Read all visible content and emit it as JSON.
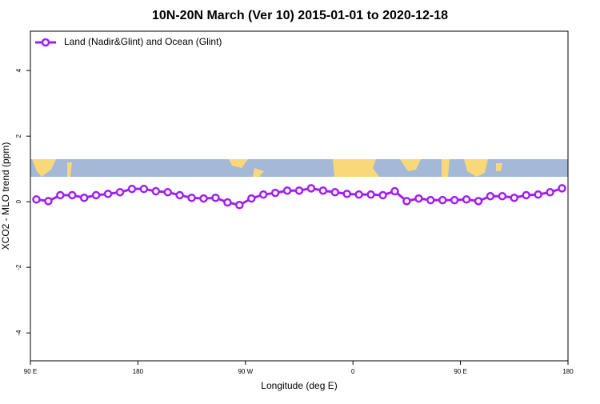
{
  "chart_data": {
    "type": "line",
    "title": "10N-20N March (Ver 10)   2015-01-01 to 2020-12-18",
    "x_label": "Longitude (deg E)",
    "y_label": "XCO2 - MLO trend (ppm)",
    "x": [
      95,
      105,
      115,
      125,
      135,
      145,
      155,
      165,
      175,
      185,
      195,
      205,
      215,
      225,
      235,
      245,
      255,
      265,
      275,
      285,
      295,
      305,
      315,
      325,
      335,
      345,
      355,
      365,
      375,
      385,
      395,
      405,
      415,
      425,
      435,
      445,
      455,
      465,
      475,
      485,
      495,
      505,
      515,
      525,
      535
    ],
    "series": [
      {
        "name": "Land (Nadir&Glint) and Ocean (Glint)",
        "color": "#a020f0",
        "values": [
          0.07,
          0.02,
          0.2,
          0.2,
          0.12,
          0.2,
          0.24,
          0.29,
          0.39,
          0.39,
          0.32,
          0.29,
          0.2,
          0.12,
          0.1,
          0.12,
          -0.02,
          -0.1,
          0.1,
          0.22,
          0.27,
          0.34,
          0.34,
          0.41,
          0.34,
          0.29,
          0.24,
          0.22,
          0.22,
          0.2,
          0.32,
          0.02,
          0.1,
          0.05,
          0.05,
          0.05,
          0.07,
          0.02,
          0.17,
          0.17,
          0.12,
          0.2,
          0.22,
          0.29,
          0.41
        ]
      }
    ],
    "xlim": [
      90,
      540
    ],
    "xticks": [
      {
        "value": 90,
        "label": "90 E"
      },
      180,
      {
        "value": 270,
        "label": "90 W"
      },
      {
        "value": 360,
        "label": "0"
      },
      {
        "value": 450,
        "label": "90 E"
      },
      {
        "value": 540,
        "label": "180"
      }
    ],
    "ylim": [
      -4.85,
      5.2
    ],
    "yticks": [
      -4,
      -2,
      0,
      2,
      4
    ],
    "legend": "top-left"
  }
}
